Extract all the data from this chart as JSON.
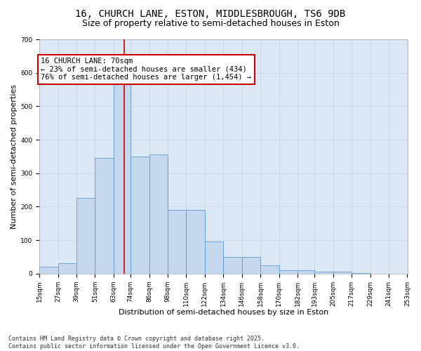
{
  "title_line1": "16, CHURCH LANE, ESTON, MIDDLESBROUGH, TS6 9DB",
  "title_line2": "Size of property relative to semi-detached houses in Eston",
  "xlabel": "Distribution of semi-detached houses by size in Eston",
  "ylabel": "Number of semi-detached properties",
  "footer_line1": "Contains HM Land Registry data © Crown copyright and database right 2025.",
  "footer_line2": "Contains public sector information licensed under the Open Government Licence v3.0.",
  "annotation_title": "16 CHURCH LANE: 70sqm",
  "annotation_line1": "← 23% of semi-detached houses are smaller (434)",
  "annotation_line2": "76% of semi-detached houses are larger (1,454) →",
  "property_size": 70,
  "bar_left_edges": [
    15,
    27,
    39,
    51,
    63,
    74,
    86,
    98,
    110,
    122,
    134,
    146,
    158,
    170,
    182,
    193,
    205,
    217,
    229,
    241
  ],
  "bar_widths": [
    12,
    12,
    12,
    12,
    11,
    12,
    12,
    12,
    12,
    12,
    12,
    12,
    12,
    12,
    11,
    12,
    12,
    12,
    12,
    12
  ],
  "bar_heights": [
    20,
    30,
    225,
    345,
    655,
    350,
    355,
    190,
    190,
    95,
    50,
    50,
    25,
    10,
    10,
    5,
    5,
    2,
    0,
    0
  ],
  "bar_color": "#c5d8ed",
  "bar_edge_color": "#5b9bd5",
  "vline_color": "#cc0000",
  "vline_x": 70,
  "ylim": [
    0,
    700
  ],
  "yticks": [
    0,
    100,
    200,
    300,
    400,
    500,
    600,
    700
  ],
  "xlim": [
    15,
    253
  ],
  "xtick_labels": [
    "15sqm",
    "27sqm",
    "39sqm",
    "51sqm",
    "63sqm",
    "74sqm",
    "86sqm",
    "98sqm",
    "110sqm",
    "122sqm",
    "134sqm",
    "146sqm",
    "158sqm",
    "170sqm",
    "182sqm",
    "193sqm",
    "205sqm",
    "217sqm",
    "229sqm",
    "241sqm",
    "253sqm"
  ],
  "xtick_positions": [
    15,
    27,
    39,
    51,
    63,
    74,
    86,
    98,
    110,
    122,
    134,
    146,
    158,
    170,
    182,
    193,
    205,
    217,
    229,
    241,
    253
  ],
  "grid_color": "#cdd8e8",
  "background_color": "#dce8f5",
  "annotation_box_color": "#ffffff",
  "annotation_box_edge_color": "#cc0000",
  "title_fontsize": 10,
  "subtitle_fontsize": 9,
  "axis_label_fontsize": 8,
  "tick_fontsize": 6.5,
  "annotation_fontsize": 7.5,
  "footer_fontsize": 6
}
